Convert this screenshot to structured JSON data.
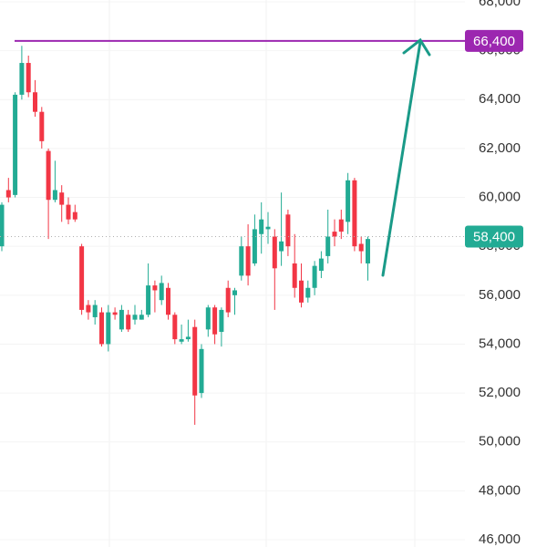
{
  "chart_data": {
    "type": "candlestick",
    "open": [
      58000,
      60300,
      60100,
      64200,
      65500,
      64300,
      63500,
      61900,
      59900,
      60200,
      59700,
      59400,
      58000,
      55600,
      55100,
      55300,
      54000,
      55300,
      54600,
      55200,
      55000,
      55000,
      55200,
      56400,
      55800,
      56300,
      55200,
      54100,
      54200,
      54700,
      52000,
      54600,
      55500,
      54500,
      56300,
      56000,
      56800,
      58000,
      57300,
      58500,
      58700,
      58400,
      57800,
      59300,
      57300,
      56600,
      55900,
      56300,
      57000,
      57600,
      58600,
      59100,
      59000,
      60700,
      58100,
      57300
    ],
    "high": [
      59800,
      60800,
      64300,
      66200,
      65800,
      64800,
      63700,
      62000,
      61500,
      60500,
      60000,
      59700,
      58100,
      55800,
      55800,
      55500,
      55600,
      55500,
      55600,
      55400,
      55600,
      55400,
      57300,
      56600,
      56800,
      56500,
      55300,
      54800,
      55000,
      55000,
      54000,
      55600,
      55600,
      55500,
      56600,
      56300,
      58400,
      58900,
      59300,
      59800,
      59400,
      58700,
      60200,
      59500,
      58500,
      57300,
      56600,
      57400,
      57800,
      59500,
      59100,
      59500,
      61000,
      60800,
      58400,
      58400
    ],
    "low": [
      57800,
      59800,
      60000,
      64000,
      64100,
      63300,
      62000,
      58300,
      59800,
      59000,
      58900,
      59000,
      55200,
      55000,
      54800,
      53900,
      53700,
      55000,
      54500,
      54500,
      54800,
      55000,
      55100,
      55300,
      55600,
      55000,
      54000,
      54000,
      54100,
      50700,
      51800,
      54300,
      54000,
      53900,
      55100,
      55200,
      56600,
      56400,
      57200,
      57700,
      58100,
      55400,
      57200,
      57600,
      55900,
      55500,
      55700,
      56000,
      56700,
      57300,
      58000,
      58300,
      58500,
      57800,
      57300,
      56600
    ],
    "close": [
      59700,
      60000,
      64200,
      65500,
      64300,
      63500,
      62300,
      59900,
      60300,
      59700,
      59100,
      59100,
      55400,
      55300,
      55600,
      54000,
      55300,
      55200,
      55400,
      54600,
      55200,
      55200,
      56400,
      56200,
      56500,
      55200,
      54200,
      54200,
      54300,
      51900,
      53800,
      55500,
      54400,
      55400,
      55300,
      56200,
      58000,
      56800,
      58700,
      59100,
      58800,
      57100,
      58200,
      58000,
      56300,
      55700,
      56300,
      57200,
      57500,
      58400,
      58400,
      58600,
      60700,
      58000,
      57800,
      58300
    ],
    "up_color": "#22ab94",
    "down_color": "#f23645",
    "ylim": [
      46000,
      68000
    ],
    "yticks": [
      {
        "value": 46000,
        "label": "46,000"
      },
      {
        "value": 48000,
        "label": "48,000"
      },
      {
        "value": 50000,
        "label": "50,000"
      },
      {
        "value": 52000,
        "label": "52,000"
      },
      {
        "value": 54000,
        "label": "54,000"
      },
      {
        "value": 56000,
        "label": "56,000"
      },
      {
        "value": 58000,
        "label": "58,000"
      },
      {
        "value": 60000,
        "label": "60,000"
      },
      {
        "value": 62000,
        "label": "62,000"
      },
      {
        "value": 64000,
        "label": "64,000"
      },
      {
        "value": 66000,
        "label": "66,000"
      },
      {
        "value": 68000,
        "label": "68,000"
      }
    ],
    "grid": true,
    "levels": [
      {
        "value": 66400,
        "label": "66,400",
        "color": "#9c27b0",
        "style": "solid"
      },
      {
        "value": 58400,
        "label": "58,400",
        "color": "#22ab94",
        "style": "dotted"
      }
    ]
  }
}
